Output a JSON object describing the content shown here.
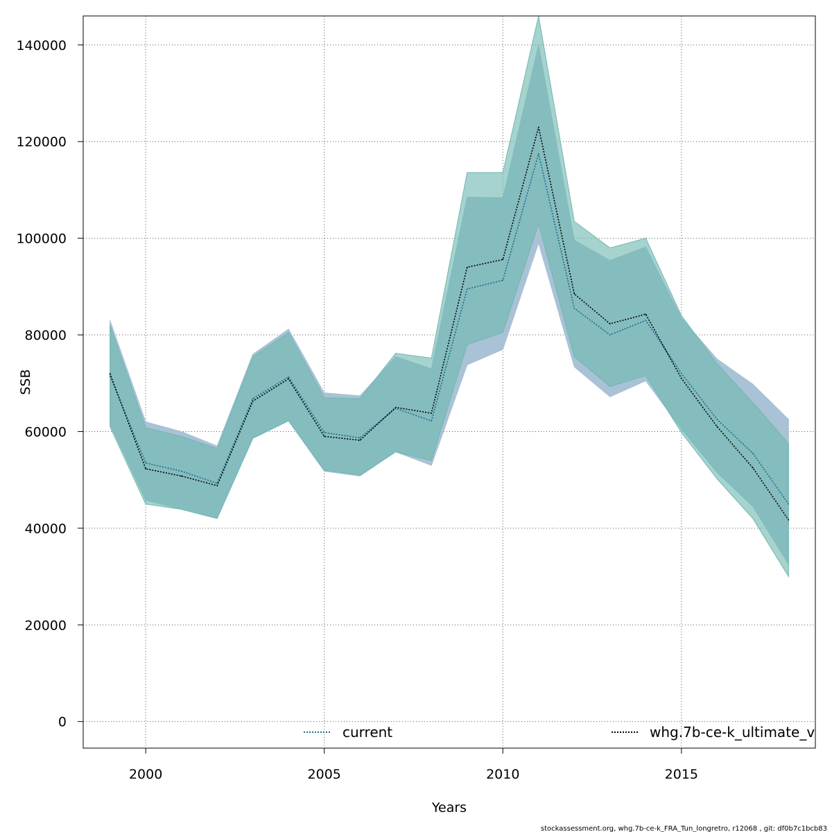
{
  "chart_data": {
    "type": "line",
    "xlabel": "Years",
    "ylabel": "SSB",
    "xlim": [
      1998.25,
      2018.75
    ],
    "ylim": [
      -5500,
      146000
    ],
    "xticks": [
      2000,
      2005,
      2010,
      2015
    ],
    "yticks": [
      0,
      20000,
      40000,
      60000,
      80000,
      100000,
      120000,
      140000
    ],
    "xtick_labels": [
      "2000",
      "2005",
      "2010",
      "2015"
    ],
    "ytick_labels": [
      "0",
      "20000",
      "40000",
      "60000",
      "80000",
      "100000",
      "120000",
      "140000"
    ],
    "grid": true,
    "legend_placement": "bottom",
    "x": [
      1999,
      2000,
      2001,
      2002,
      2003,
      2004,
      2005,
      2006,
      2007,
      2008,
      2009,
      2010,
      2011,
      2012,
      2013,
      2014,
      2015,
      2016,
      2017,
      2018
    ],
    "series": [
      {
        "name": "current",
        "color": "#4a7ea8",
        "band_color": "#a7c1d5",
        "line_color": "#1e6a8a",
        "values": [
          71500,
          53500,
          51800,
          49300,
          66800,
          71300,
          59800,
          58700,
          64800,
          62200,
          89500,
          91300,
          117500,
          85500,
          80000,
          83000,
          72000,
          62500,
          55500,
          45000
        ],
        "lower": [
          61500,
          45800,
          43900,
          42100,
          58600,
          62200,
          51800,
          50800,
          55800,
          53000,
          73800,
          77000,
          99000,
          73400,
          67200,
          70500,
          60500,
          51500,
          44500,
          32500
        ],
        "upper": [
          83000,
          62000,
          60000,
          57000,
          76000,
          81200,
          68000,
          67400,
          75500,
          73000,
          108500,
          108400,
          140000,
          99600,
          95400,
          98200,
          83500,
          75000,
          69800,
          62500
        ]
      },
      {
        "name": "whg.7b-ce-k_ultimate_v",
        "color": "#2e9a88",
        "band_color": "#6fb8b0",
        "line_color": "#000000",
        "values": [
          72000,
          52300,
          50800,
          48800,
          66300,
          70900,
          59000,
          58200,
          65000,
          63800,
          94000,
          95600,
          123000,
          88500,
          82300,
          84300,
          71000,
          61000,
          52500,
          41700
        ],
        "lower": [
          61000,
          45000,
          43900,
          42000,
          58600,
          62200,
          52000,
          51000,
          55800,
          54000,
          78000,
          80500,
          103000,
          75500,
          69300,
          71600,
          59800,
          50200,
          42000,
          30000
        ],
        "upper": [
          82000,
          60800,
          59000,
          56500,
          75500,
          80500,
          67000,
          66800,
          76200,
          75200,
          113600,
          113600,
          146000,
          103500,
          98000,
          100000,
          84000,
          74000,
          66000,
          57500
        ]
      }
    ]
  },
  "footer": "stockassessment.org, whg.7b-ce-k_FRA_Tun_longretro, r12068 , git: df0b7c1bcb83"
}
